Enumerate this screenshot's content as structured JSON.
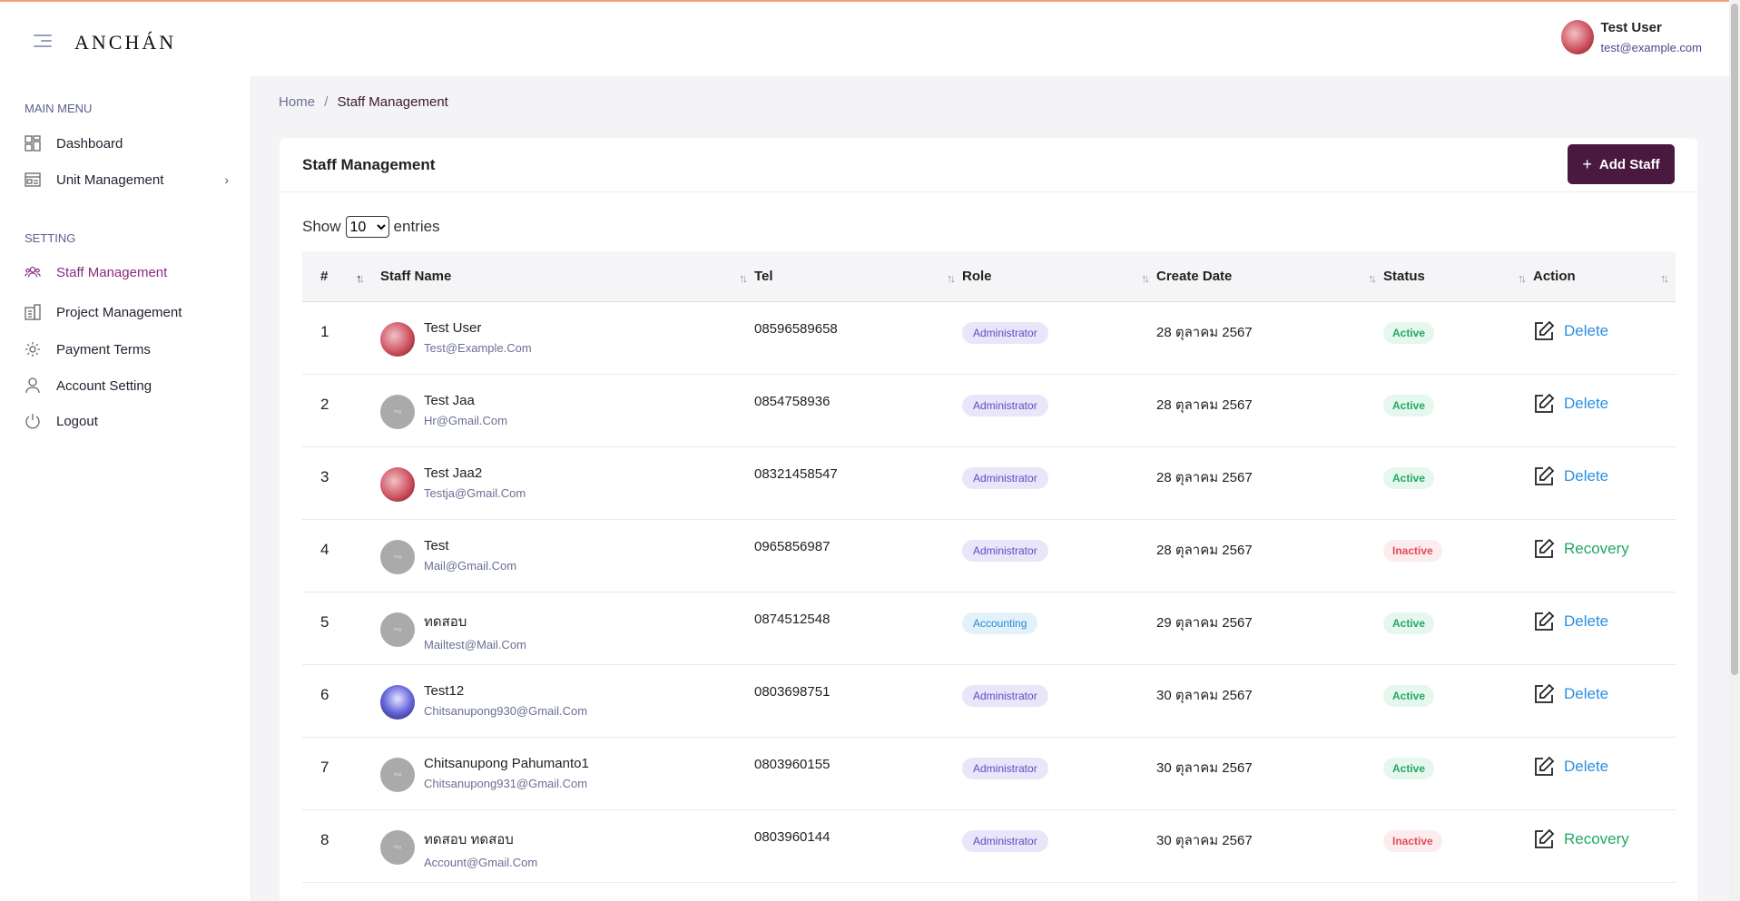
{
  "header": {
    "logo": "ANCHÁN",
    "user_name": "Test User",
    "user_email": "test@example.com"
  },
  "sidebar": {
    "main_menu_label": "MAIN MENU",
    "setting_label": "SETTING",
    "items": [
      {
        "label": "Dashboard"
      },
      {
        "label": "Unit Management"
      },
      {
        "label": "Staff Management"
      },
      {
        "label": "Project Management"
      },
      {
        "label": "Payment Terms"
      },
      {
        "label": "Account Setting"
      },
      {
        "label": "Logout"
      }
    ]
  },
  "breadcrumb": {
    "home": "Home",
    "sep": "/",
    "current": "Staff Management"
  },
  "card": {
    "title": "Staff Management",
    "add_label": "Add Staff",
    "show_label": "Show",
    "entries_label": "entries",
    "page_size": "10"
  },
  "table": {
    "headers": [
      "#",
      "Staff Name",
      "Tel",
      "Role",
      "Create Date",
      "Status",
      "Action"
    ],
    "rows": [
      {
        "num": "1",
        "name": "Test User",
        "email": "Test@Example.Com",
        "tel": "08596589658",
        "role": "Administrator",
        "date": "28 ตุลาคม 2567",
        "status": "Active",
        "action": "Delete"
      },
      {
        "num": "2",
        "name": "Test Jaa",
        "email": "Hr@Gmail.Com",
        "tel": "0854758936",
        "role": "Administrator",
        "date": "28 ตุลาคม 2567",
        "status": "Active",
        "action": "Delete"
      },
      {
        "num": "3",
        "name": "Test Jaa2",
        "email": "Testja@Gmail.Com",
        "tel": "08321458547",
        "role": "Administrator",
        "date": "28 ตุลาคม 2567",
        "status": "Active",
        "action": "Delete"
      },
      {
        "num": "4",
        "name": "Test",
        "email": "Mail@Gmail.Com",
        "tel": "0965856987",
        "role": "Administrator",
        "date": "28 ตุลาคม 2567",
        "status": "Inactive",
        "action": "Recovery"
      },
      {
        "num": "5",
        "name": "ทดสอบ",
        "email": "Mailtest@Mail.Com",
        "tel": "0874512548",
        "role": "Accounting",
        "date": "29 ตุลาคม 2567",
        "status": "Active",
        "action": "Delete"
      },
      {
        "num": "6",
        "name": "Test12",
        "email": "Chitsanupong930@Gmail.Com",
        "tel": "0803698751",
        "role": "Administrator",
        "date": "30 ตุลาคม 2567",
        "status": "Active",
        "action": "Delete"
      },
      {
        "num": "7",
        "name": "Chitsanupong Pahumanto1",
        "email": "Chitsanupong931@Gmail.Com",
        "tel": "0803960155",
        "role": "Administrator",
        "date": "30 ตุลาคม 2567",
        "status": "Active",
        "action": "Delete"
      },
      {
        "num": "8",
        "name": "ทดสอบ ทดสอบ",
        "email": "Account@Gmail.Com",
        "tel": "0803960144",
        "role": "Administrator",
        "date": "30 ตุลาคม 2567",
        "status": "Inactive",
        "action": "Recovery"
      }
    ]
  },
  "colors": {
    "accent": "#4a1940",
    "active_nav": "#8a2a82",
    "delete": "#2b8fe0",
    "recovery": "#22a862"
  }
}
